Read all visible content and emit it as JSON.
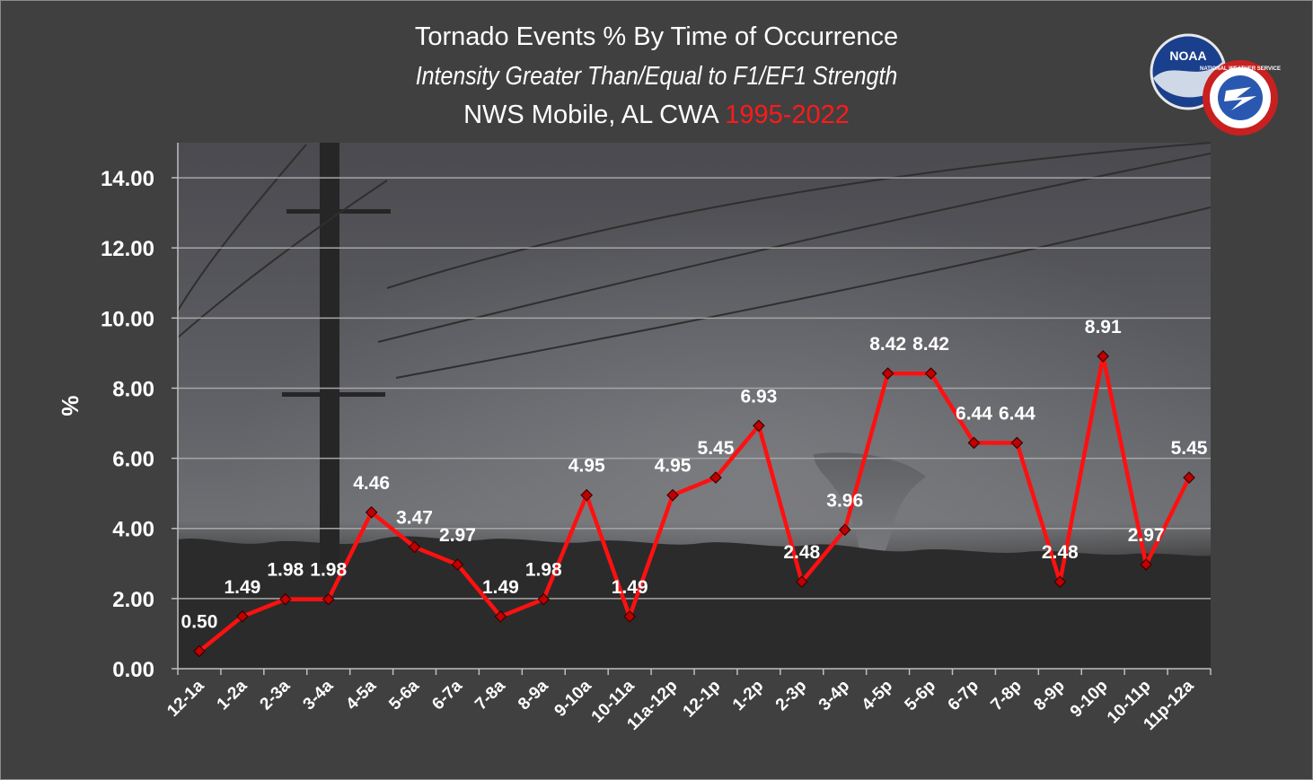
{
  "title": {
    "line1": "Tornado Events % By Time of Occurrence",
    "line2": "Intensity Greater Than/Equal to F1/EF1 Strength",
    "line3_prefix": "NWS Mobile, AL CWA ",
    "line3_years": "1995-2022"
  },
  "logos": {
    "noaa_text": "NOAA",
    "nws_text": "NATIONAL WEATHER SERVICE"
  },
  "colors": {
    "line": "#ff1010",
    "marker": "#c00000",
    "years": "#ff1a1a",
    "background": "#404040"
  },
  "chart_data": {
    "type": "line",
    "title": "Tornado Events % By Time of Occurrence",
    "xlabel": "",
    "ylabel": "%",
    "ylim": [
      0,
      15
    ],
    "yticks": [
      "0.00",
      "2.00",
      "4.00",
      "6.00",
      "8.00",
      "10.00",
      "12.00",
      "14.00"
    ],
    "grid": true,
    "legend": "none",
    "categories": [
      "12-1a",
      "1-2a",
      "2-3a",
      "3-4a",
      "4-5a",
      "5-6a",
      "6-7a",
      "7-8a",
      "8-9a",
      "9-10a",
      "10-11a",
      "11a-12p",
      "12-1p",
      "1-2p",
      "2-3p",
      "3-4p",
      "4-5p",
      "5-6p",
      "6-7p",
      "7-8p",
      "8-9p",
      "9-10p",
      "10-11p",
      "11p-12a"
    ],
    "values": [
      0.5,
      1.49,
      1.98,
      1.98,
      4.46,
      3.47,
      2.97,
      1.49,
      1.98,
      4.95,
      1.49,
      4.95,
      5.45,
      6.93,
      2.48,
      3.96,
      8.42,
      8.42,
      6.44,
      6.44,
      2.48,
      8.91,
      2.97,
      5.45
    ],
    "labels": [
      "0.50",
      "1.49",
      "1.98",
      "1.98",
      "4.46",
      "3.47",
      "2.97",
      "1.49",
      "1.98",
      "4.95",
      "1.49",
      "4.95",
      "5.45",
      "6.93",
      "2.48",
      "3.96",
      "8.42",
      "8.42",
      "6.44",
      "6.44",
      "2.48",
      "8.91",
      "2.97",
      "5.45"
    ]
  }
}
